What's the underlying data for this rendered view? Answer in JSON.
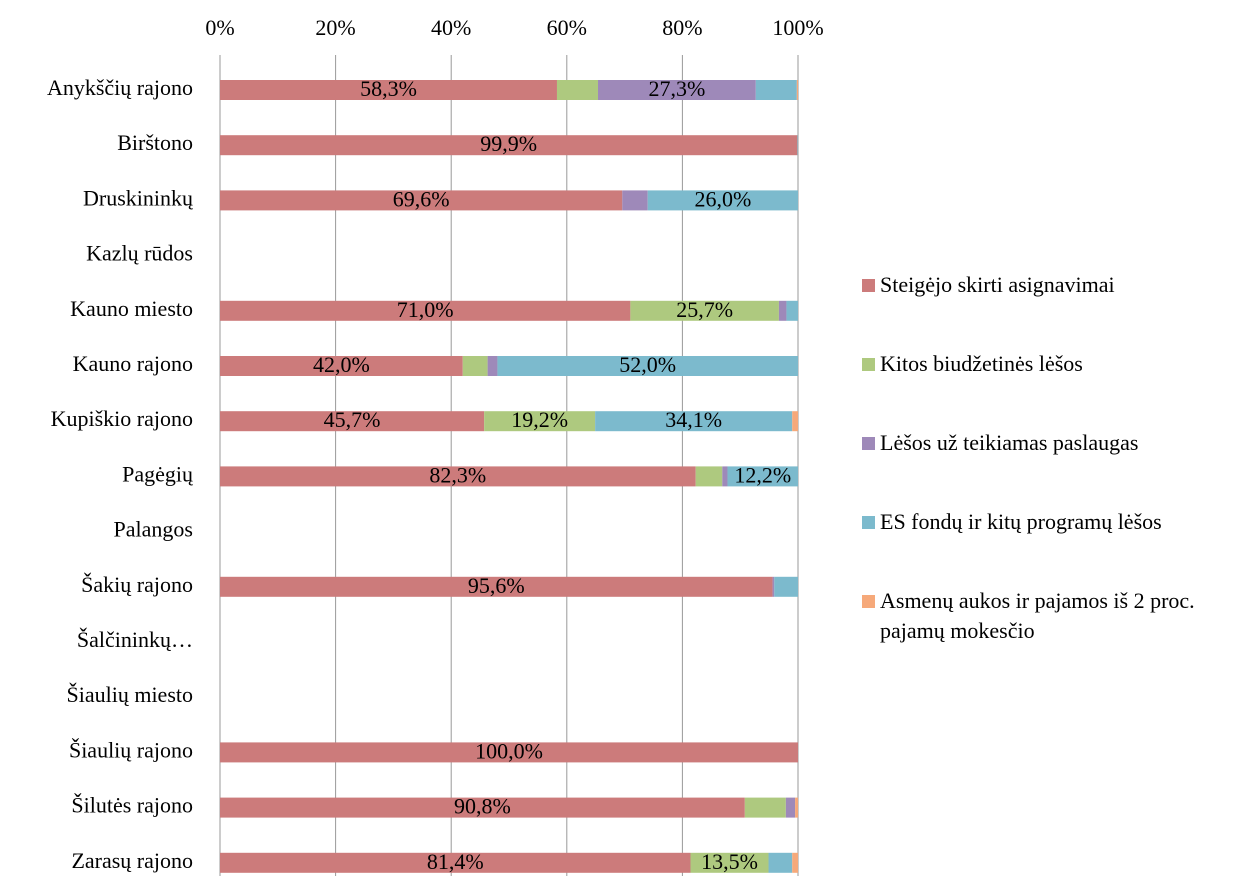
{
  "chart_data": {
    "type": "stacked-bar-horizontal",
    "categories": [
      "Anykščių rajono",
      "Birštono",
      "Druskininkų",
      "Kazlų rūdos",
      "Kauno miesto",
      "Kauno rajono",
      "Kupiškio rajono",
      "Pagėgių",
      "Palangos",
      "Šakių rajono",
      "Šalčininkų…",
      "Šiaulių miesto",
      "Šiaulių rajono",
      "Šilutės rajono",
      "Zarasų rajono"
    ],
    "series": [
      {
        "name": "Steigėjo skirti asignavimai",
        "color": "#cc7b7b",
        "values": [
          58.3,
          99.9,
          69.6,
          null,
          71.0,
          42.0,
          45.7,
          82.3,
          null,
          95.6,
          null,
          null,
          100.0,
          90.8,
          81.4
        ],
        "value_labels": [
          "58,3%",
          "99,9%",
          "69,6%",
          null,
          "71,0%",
          "42,0%",
          "45,7%",
          "82,3%",
          null,
          "95,6%",
          null,
          null,
          "100,0%",
          "90,8%",
          "81,4%"
        ]
      },
      {
        "name": "Kitos biudžetinės lėšos",
        "color": "#aec97f",
        "values": [
          7.1,
          0,
          0,
          null,
          25.7,
          4.3,
          19.2,
          4.6,
          null,
          0,
          null,
          null,
          0,
          7.1,
          13.5
        ],
        "value_labels": [
          null,
          null,
          null,
          null,
          "25,7%",
          null,
          "19,2%",
          null,
          null,
          null,
          null,
          null,
          null,
          null,
          "13,5%"
        ]
      },
      {
        "name": "Lėšos už teikiamas paslaugas",
        "color": "#9e89b9",
        "values": [
          27.3,
          0,
          4.4,
          null,
          1.3,
          1.7,
          0,
          0.9,
          null,
          0.3,
          null,
          null,
          0,
          1.6,
          0
        ],
        "value_labels": [
          "27,3%",
          null,
          null,
          null,
          null,
          null,
          null,
          null,
          null,
          null,
          null,
          null,
          null,
          null,
          null
        ]
      },
      {
        "name": "ES fondų ir kitų programų lėšos",
        "color": "#7cbacd",
        "values": [
          7.1,
          0.1,
          26.0,
          null,
          2.0,
          52.0,
          34.1,
          12.2,
          null,
          4.1,
          null,
          null,
          0,
          0,
          4.1
        ],
        "value_labels": [
          null,
          null,
          "26,0%",
          null,
          null,
          "52,0%",
          "34,1%",
          "12,2%",
          null,
          null,
          null,
          null,
          null,
          null,
          null
        ]
      },
      {
        "name": "Asmenų aukos ir pajamos iš 2 proc. pajamų mokesčio",
        "color": "#f6a97a",
        "values": [
          0.2,
          0,
          0,
          null,
          0,
          0,
          1.0,
          0,
          null,
          0,
          null,
          null,
          0,
          0.5,
          1.0
        ],
        "value_labels": [
          null,
          null,
          null,
          null,
          null,
          null,
          null,
          null,
          null,
          null,
          null,
          null,
          null,
          null,
          null
        ]
      }
    ],
    "xlim": [
      0,
      100
    ],
    "xticks": [
      {
        "value": 0,
        "label": "0%"
      },
      {
        "value": 20,
        "label": "20%"
      },
      {
        "value": 40,
        "label": "40%"
      },
      {
        "value": 60,
        "label": "60%"
      },
      {
        "value": 80,
        "label": "80%"
      },
      {
        "value": 100,
        "label": "100%"
      }
    ],
    "grid": true,
    "legend": "right"
  }
}
